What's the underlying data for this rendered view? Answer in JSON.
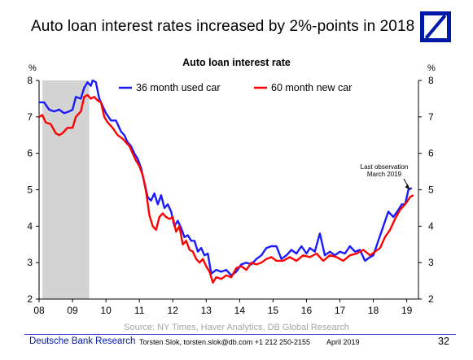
{
  "slide": {
    "title": "Auto loan interest rates increased by 2%-points in 2018",
    "source": "Source: NY Times, Haver Analytics, DB Global Research",
    "footer": {
      "org": "Deutsche Bank Research",
      "contact": "Torsten Slok, torsten.slok@db.com +1 212 250-2155",
      "date": "April 2019",
      "page": "32"
    }
  },
  "colors": {
    "used_car": "#1a1aff",
    "new_car": "#ff0000",
    "recession_shade": "#d3d3d3",
    "brand": "#0018a8"
  },
  "chart_data": {
    "type": "line",
    "title": "Auto loan interest rate",
    "y_unit_left": "%",
    "y_unit_right": "%",
    "x_ticks": [
      "08",
      "09",
      "10",
      "11",
      "12",
      "13",
      "14",
      "15",
      "16",
      "17",
      "18",
      "19"
    ],
    "xlim": [
      2008.0,
      2019.35
    ],
    "ylim": [
      2,
      8
    ],
    "y_ticks": [
      2,
      3,
      4,
      5,
      6,
      7,
      8
    ],
    "grid": false,
    "legend_position": "top",
    "shaded_region": {
      "from": 2008.1,
      "to": 2009.5,
      "label": ""
    },
    "annotation": {
      "text": [
        "Last observation",
        "March 2019"
      ],
      "x": 2019.1,
      "y": 5.0
    },
    "series": [
      {
        "name": "36 month used car",
        "color": "#1a1aff",
        "x": [
          2008.0,
          2008.15,
          2008.3,
          2008.45,
          2008.6,
          2008.75,
          2008.9,
          2009.0,
          2009.1,
          2009.25,
          2009.35,
          2009.45,
          2009.55,
          2009.6,
          2009.7,
          2009.8,
          2009.9,
          2010.0,
          2010.15,
          2010.3,
          2010.45,
          2010.55,
          2010.65,
          2010.75,
          2010.85,
          2010.95,
          2011.05,
          2011.15,
          2011.25,
          2011.35,
          2011.45,
          2011.55,
          2011.65,
          2011.75,
          2011.85,
          2011.95,
          2012.05,
          2012.15,
          2012.25,
          2012.35,
          2012.45,
          2012.55,
          2012.65,
          2012.75,
          2012.85,
          2012.95,
          2013.05,
          2013.15,
          2013.3,
          2013.45,
          2013.6,
          2013.75,
          2013.9,
          2014.05,
          2014.2,
          2014.35,
          2014.5,
          2014.65,
          2014.8,
          2014.95,
          2015.1,
          2015.25,
          2015.4,
          2015.55,
          2015.7,
          2015.85,
          2016.0,
          2016.1,
          2016.25,
          2016.4,
          2016.55,
          2016.7,
          2016.85,
          2017.0,
          2017.15,
          2017.3,
          2017.45,
          2017.6,
          2017.75,
          2017.9,
          2018.0,
          2018.15,
          2018.3,
          2018.45,
          2018.6,
          2018.75,
          2018.85,
          2018.95,
          2019.05,
          2019.15
        ],
        "values": [
          7.4,
          7.4,
          7.2,
          7.15,
          7.2,
          7.1,
          7.15,
          7.2,
          7.55,
          7.5,
          7.8,
          7.95,
          7.85,
          8.0,
          7.95,
          7.5,
          7.3,
          7.1,
          6.9,
          6.9,
          6.6,
          6.5,
          6.3,
          6.2,
          6.0,
          5.85,
          5.6,
          5.2,
          4.8,
          4.7,
          4.9,
          4.6,
          4.85,
          4.5,
          4.6,
          4.4,
          4.0,
          4.15,
          3.95,
          3.7,
          3.75,
          3.6,
          3.6,
          3.3,
          3.4,
          3.2,
          3.25,
          2.7,
          2.8,
          2.75,
          2.8,
          2.65,
          2.75,
          2.95,
          3.0,
          2.95,
          3.1,
          3.2,
          3.4,
          3.45,
          3.45,
          3.1,
          3.2,
          3.35,
          3.25,
          3.45,
          3.25,
          3.4,
          3.3,
          3.8,
          3.2,
          3.3,
          3.2,
          3.3,
          3.25,
          3.45,
          3.3,
          3.35,
          3.05,
          3.15,
          3.2,
          3.6,
          4.0,
          4.4,
          4.25,
          4.45,
          4.6,
          4.6,
          5.0,
          5.05
        ]
      },
      {
        "name": "60 month new car",
        "color": "#ff0000",
        "x": [
          2008.0,
          2008.1,
          2008.2,
          2008.35,
          2008.5,
          2008.6,
          2008.7,
          2008.85,
          2009.0,
          2009.1,
          2009.25,
          2009.35,
          2009.45,
          2009.55,
          2009.65,
          2009.75,
          2009.85,
          2009.95,
          2010.05,
          2010.2,
          2010.35,
          2010.5,
          2010.6,
          2010.7,
          2010.8,
          2010.9,
          2011.0,
          2011.1,
          2011.2,
          2011.3,
          2011.4,
          2011.5,
          2011.6,
          2011.7,
          2011.8,
          2011.9,
          2012.0,
          2012.1,
          2012.2,
          2012.3,
          2012.4,
          2012.5,
          2012.6,
          2012.7,
          2012.8,
          2012.9,
          2013.0,
          2013.1,
          2013.2,
          2013.3,
          2013.45,
          2013.6,
          2013.75,
          2013.9,
          2014.05,
          2014.2,
          2014.35,
          2014.5,
          2014.65,
          2014.8,
          2014.95,
          2015.1,
          2015.3,
          2015.5,
          2015.7,
          2015.9,
          2016.1,
          2016.3,
          2016.5,
          2016.7,
          2016.9,
          2017.1,
          2017.3,
          2017.5,
          2017.7,
          2017.9,
          2018.05,
          2018.2,
          2018.35,
          2018.5,
          2018.65,
          2018.8,
          2018.95,
          2019.1,
          2019.2
        ],
        "values": [
          7.0,
          7.05,
          6.85,
          6.8,
          6.55,
          6.5,
          6.55,
          6.7,
          6.7,
          7.0,
          7.15,
          7.55,
          7.6,
          7.5,
          7.55,
          7.45,
          7.4,
          7.0,
          6.85,
          6.7,
          6.5,
          6.4,
          6.3,
          6.2,
          6.0,
          5.8,
          5.65,
          5.4,
          4.95,
          4.3,
          4.0,
          3.9,
          4.25,
          4.35,
          4.25,
          4.2,
          4.25,
          3.85,
          4.0,
          3.5,
          3.6,
          3.35,
          3.3,
          3.1,
          3.0,
          3.1,
          2.9,
          2.75,
          2.45,
          2.6,
          2.55,
          2.65,
          2.6,
          2.85,
          2.9,
          2.8,
          3.0,
          2.95,
          3.0,
          3.1,
          3.15,
          3.05,
          3.05,
          3.15,
          3.05,
          3.2,
          3.15,
          3.25,
          3.05,
          3.2,
          3.15,
          3.05,
          3.2,
          3.25,
          3.35,
          3.2,
          3.3,
          3.4,
          3.7,
          3.9,
          4.2,
          4.45,
          4.6,
          4.8,
          4.85
        ]
      }
    ]
  }
}
